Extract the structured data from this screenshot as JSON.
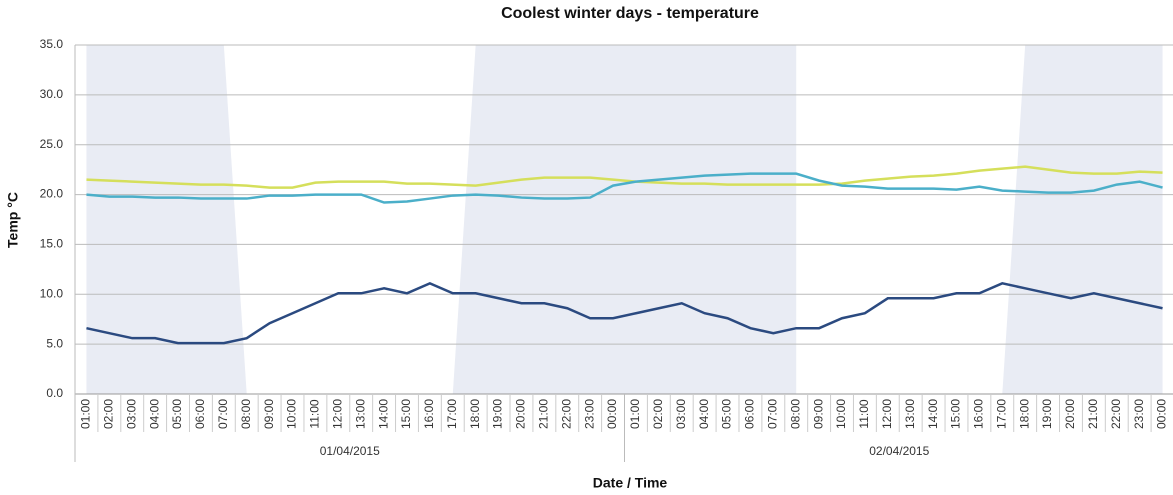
{
  "chart_data": {
    "type": "line",
    "title": "Coolest winter days - temperature",
    "y_label": "Temp °C",
    "x_label": "Date / Time",
    "categories": [
      "01:00",
      "02:00",
      "03:00",
      "04:00",
      "05:00",
      "06:00",
      "07:00",
      "08:00",
      "09:00",
      "10:00",
      "11:00",
      "12:00",
      "13:00",
      "14:00",
      "15:00",
      "16:00",
      "17:00",
      "18:00",
      "19:00",
      "20:00",
      "21:00",
      "22:00",
      "23:00",
      "00:00",
      "01:00",
      "02:00",
      "03:00",
      "04:00",
      "05:00",
      "06:00",
      "07:00",
      "08:00",
      "09:00",
      "10:00",
      "11:00",
      "12:00",
      "13:00",
      "14:00",
      "15:00",
      "16:00",
      "17:00",
      "18:00",
      "19:00",
      "20:00",
      "21:00",
      "22:00",
      "23:00",
      "00:00"
    ],
    "groups": [
      "01/04/2015",
      "02/04/2015"
    ],
    "series": [
      {
        "color": "#d5df5b",
        "values": [
          21.5,
          21.4,
          21.3,
          21.2,
          21.1,
          21.0,
          21.0,
          20.9,
          20.7,
          20.7,
          21.2,
          21.3,
          21.3,
          21.3,
          21.1,
          21.1,
          21.0,
          20.9,
          21.2,
          21.5,
          21.7,
          21.7,
          21.7,
          21.5,
          21.3,
          21.2,
          21.1,
          21.1,
          21.0,
          21.0,
          21.0,
          21.0,
          21.0,
          21.1,
          21.4,
          21.6,
          21.8,
          21.9,
          22.1,
          22.4,
          22.6,
          22.8,
          22.5,
          22.2,
          22.1,
          22.1,
          22.3,
          22.2
        ]
      },
      {
        "color": "#4bafc9",
        "values": [
          20.0,
          19.8,
          19.8,
          19.7,
          19.7,
          19.6,
          19.6,
          19.6,
          19.9,
          19.9,
          20.0,
          20.0,
          20.0,
          19.2,
          19.3,
          19.6,
          19.9,
          20.0,
          19.9,
          19.7,
          19.6,
          19.6,
          19.7,
          20.9,
          21.3,
          21.5,
          21.7,
          21.9,
          22.0,
          22.1,
          22.1,
          22.1,
          21.4,
          20.9,
          20.8,
          20.6,
          20.6,
          20.6,
          20.5,
          20.8,
          20.4,
          20.3,
          20.2,
          20.2,
          20.4,
          21.0,
          21.3,
          20.7
        ]
      },
      {
        "color": "#2b4a80",
        "values": [
          6.6,
          6.1,
          5.6,
          5.6,
          5.1,
          5.1,
          5.1,
          5.6,
          7.1,
          8.1,
          9.1,
          10.1,
          10.1,
          10.6,
          10.1,
          11.1,
          10.1,
          10.1,
          9.6,
          9.1,
          9.1,
          8.6,
          7.6,
          7.6,
          8.1,
          8.6,
          9.1,
          8.1,
          7.6,
          6.6,
          6.1,
          6.6,
          6.6,
          7.6,
          8.1,
          9.6,
          9.6,
          9.6,
          10.1,
          10.1,
          11.1,
          10.6,
          10.1,
          9.6,
          10.1,
          9.6,
          9.1,
          8.6
        ]
      }
    ],
    "ylim": [
      0,
      35
    ],
    "yticks": [
      {
        "value": 0,
        "label": "0.0"
      },
      {
        "value": 5,
        "label": "5.0"
      },
      {
        "value": 10,
        "label": "10.0"
      },
      {
        "value": 15,
        "label": "15.0"
      },
      {
        "value": 20,
        "label": "20.0"
      },
      {
        "value": 25,
        "label": "25.0"
      },
      {
        "value": 30,
        "label": "30.0"
      },
      {
        "value": 35,
        "label": "35.0"
      }
    ],
    "grid": true
  }
}
